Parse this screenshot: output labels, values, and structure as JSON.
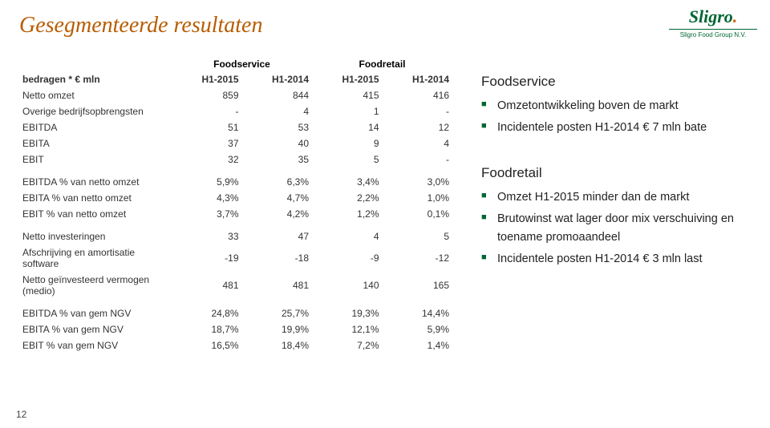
{
  "title": "Gesegmenteerde resultaten",
  "logo": {
    "brand": "Sligro",
    "subtitle": "Sligro Food Group N.V."
  },
  "page_number": "12",
  "table": {
    "group_headers": {
      "segment_a": "Foodservice",
      "segment_b": "Foodretail"
    },
    "col_label_row_first": "bedragen * € mln",
    "period_cols": [
      "H1-2015",
      "H1-2014",
      "H1-2015",
      "H1-2014"
    ],
    "blocks": [
      {
        "rows": [
          {
            "label": "Netto omzet",
            "v": [
              "859",
              "844",
              "415",
              "416"
            ]
          },
          {
            "label": "Overige bedrijfsopbrengsten",
            "v": [
              "-",
              "4",
              "1",
              "-"
            ]
          },
          {
            "label": "EBITDA",
            "v": [
              "51",
              "53",
              "14",
              "12"
            ]
          },
          {
            "label": "EBITA",
            "v": [
              "37",
              "40",
              "9",
              "4"
            ]
          },
          {
            "label": "EBIT",
            "v": [
              "32",
              "35",
              "5",
              "-"
            ]
          }
        ]
      },
      {
        "rows": [
          {
            "label": "EBITDA % van netto omzet",
            "v": [
              "5,9%",
              "6,3%",
              "3,4%",
              "3,0%"
            ]
          },
          {
            "label": "EBITA % van netto omzet",
            "v": [
              "4,3%",
              "4,7%",
              "2,2%",
              "1,0%"
            ]
          },
          {
            "label": "EBIT % van netto omzet",
            "v": [
              "3,7%",
              "4,2%",
              "1,2%",
              "0,1%"
            ]
          }
        ]
      },
      {
        "rows": [
          {
            "label": "Netto investeringen",
            "v": [
              "33",
              "47",
              "4",
              "5"
            ]
          },
          {
            "label": "Afschrijving en amortisatie software",
            "v": [
              "-19",
              "-18",
              "-9",
              "-12"
            ]
          },
          {
            "label": "Netto geïnvesteerd vermogen (medio)",
            "v": [
              "481",
              "481",
              "140",
              "165"
            ]
          }
        ]
      },
      {
        "rows": [
          {
            "label": "EBITDA % van gem NGV",
            "v": [
              "24,8%",
              "25,7%",
              "19,3%",
              "14,4%"
            ]
          },
          {
            "label": "EBITA % van gem NGV",
            "v": [
              "18,7%",
              "19,9%",
              "12,1%",
              "5,9%"
            ]
          },
          {
            "label": "EBIT % van gem NGV",
            "v": [
              "16,5%",
              "18,4%",
              "7,2%",
              "1,4%"
            ]
          }
        ]
      }
    ]
  },
  "right": {
    "section1": {
      "heading": "Foodservice",
      "bullets": [
        "Omzetontwikkeling boven de markt",
        "Incidentele posten H1-2014 € 7 mln bate"
      ]
    },
    "section2": {
      "heading": "Foodretail",
      "bullets": [
        "Omzet H1-2015 minder dan de markt",
        "Brutowinst wat lager door mix verschuiving en toename promoaandeel",
        "Incidentele posten H1-2014 € 3 mln last"
      ]
    }
  }
}
